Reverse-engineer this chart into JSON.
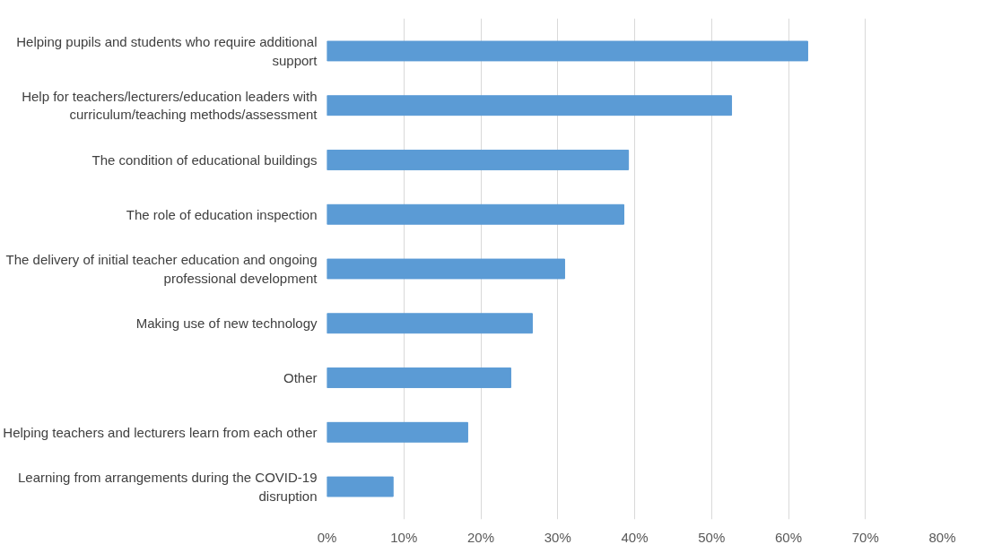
{
  "chart_data": {
    "type": "bar",
    "orientation": "horizontal",
    "categories": [
      "Helping pupils and students who require additional\nsupport",
      "Help for teachers/lecturers/education leaders with\ncurriculum/teaching methods/assessment",
      "The condition of educational buildings",
      "The role of education inspection",
      "The delivery of initial teacher education and ongoing\nprofessional development",
      "Making use of new technology",
      "Other",
      "Helping teachers and lecturers learn from each other",
      "Learning from arrangements during the COVID-19\ndisruption"
    ],
    "values": [
      62.5,
      52.6,
      39.2,
      38.6,
      30.9,
      26.7,
      23.9,
      18.3,
      8.6
    ],
    "color": "#5b9bd5",
    "xlim": [
      0,
      80
    ],
    "xticks": [
      {
        "value": 0,
        "label": "0%"
      },
      {
        "value": 10,
        "label": "10%"
      },
      {
        "value": 20,
        "label": "20%"
      },
      {
        "value": 30,
        "label": "30%"
      },
      {
        "value": 40,
        "label": "40%"
      },
      {
        "value": 50,
        "label": "50%"
      },
      {
        "value": 60,
        "label": "60%"
      },
      {
        "value": 70,
        "label": "70%"
      },
      {
        "value": 80,
        "label": "80%"
      }
    ],
    "grid": "x"
  }
}
